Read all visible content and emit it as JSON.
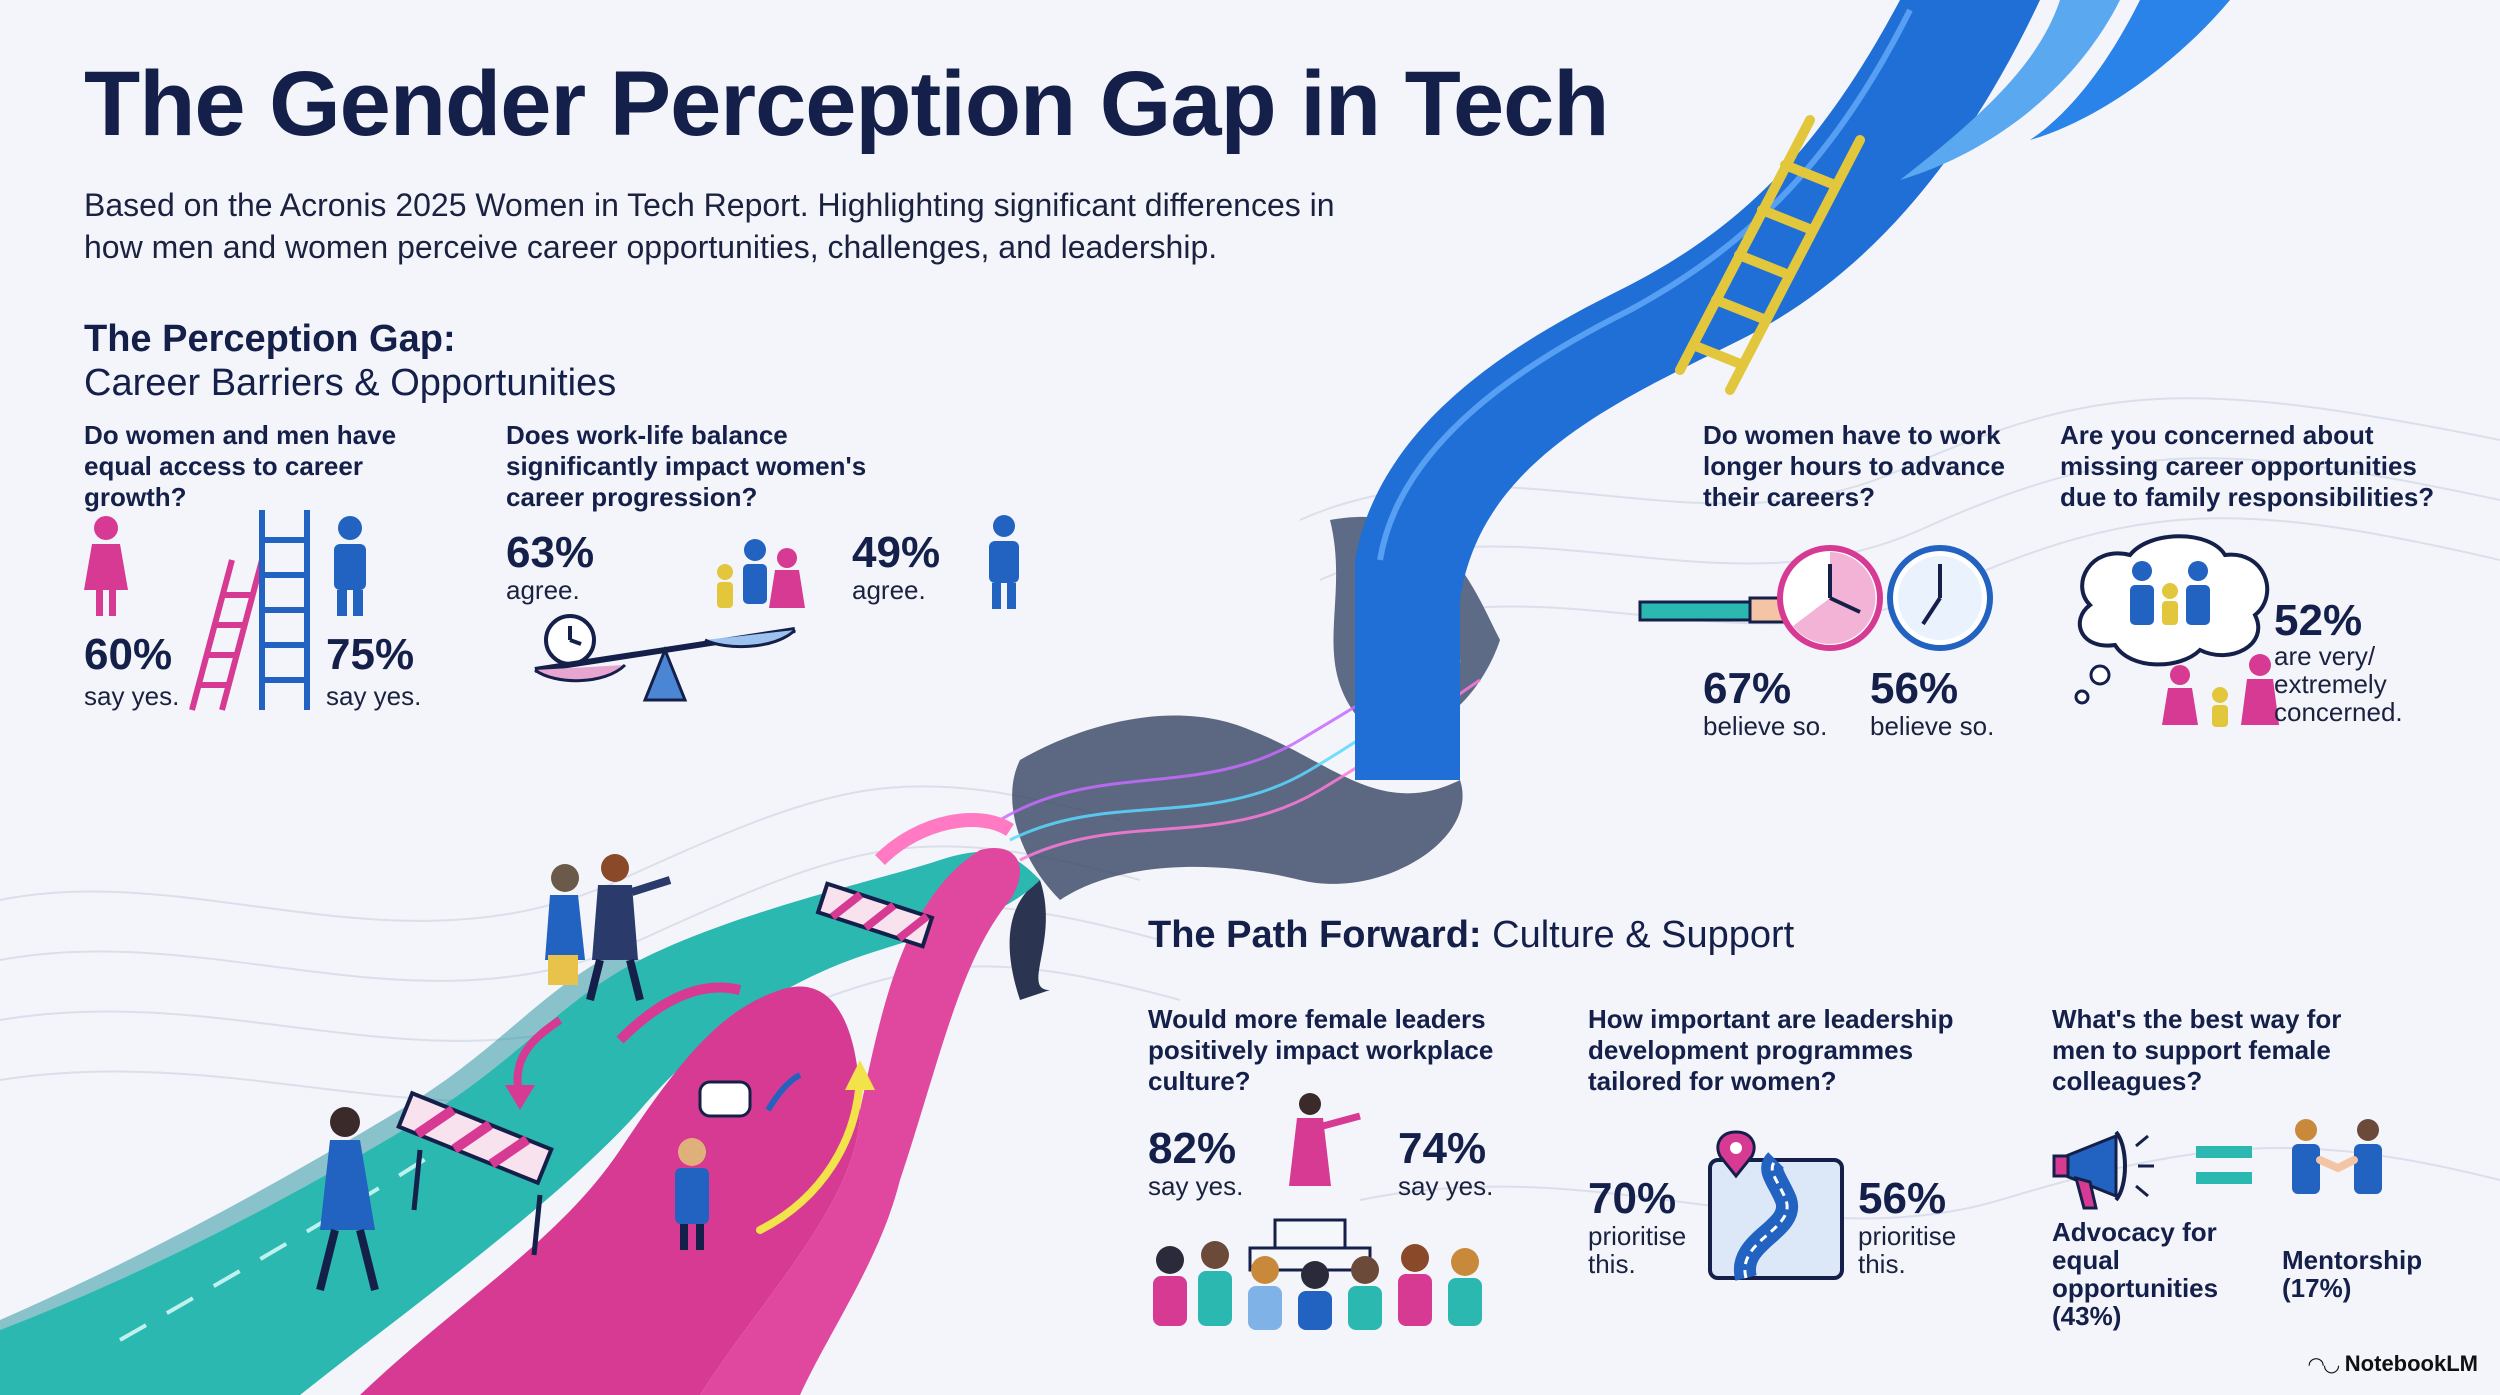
{
  "header": {
    "title": "The Gender Perception Gap in Tech",
    "subtitle": "Based on the Acronis 2025 Women in Tech Report. Highlighting significant differences in how men and women perceive career opportunities, challenges, and leadership."
  },
  "perception": {
    "heading": "The Perception Gap:",
    "subheading": "Career Barriers & Opportunities",
    "stats": [
      {
        "question": "Do women and men have equal access to career growth?",
        "women_value": "60%",
        "women_label": "say yes.",
        "men_value": "75%",
        "men_label": "say yes."
      },
      {
        "question": "Does work-life balance significantly impact women's career progression?",
        "women_value": "63%",
        "women_label": "agree.",
        "men_value": "49%",
        "men_label": "agree."
      },
      {
        "question": "Do women have to work longer hours to advance their careers?",
        "women_value": "67%",
        "women_label": "believe so.",
        "men_value": "56%",
        "men_label": "believe so."
      },
      {
        "question": "Are you concerned about missing career opportunities due to family responsibilities?",
        "value": "52%",
        "label": "are very/ extremely concerned."
      }
    ]
  },
  "path_forward": {
    "heading": "The Path Forward:",
    "subheading": "Culture & Support",
    "stats": [
      {
        "question": "Would more female leaders positively impact workplace culture?",
        "women_value": "82%",
        "women_label": "say yes.",
        "men_value": "74%",
        "men_label": "say yes."
      },
      {
        "question": "How important are leadership development programmes tailored for women?",
        "women_value": "70%",
        "women_label": "prioritise this.",
        "men_value": "56%",
        "men_label": "prioritise this."
      },
      {
        "question": "What's the best way for men to support female colleagues?",
        "option_a": "Advocacy for equal opportunities (43%)",
        "option_b": "Mentorship (17%)"
      }
    ]
  },
  "footer": {
    "brand": "NotebookLM"
  },
  "colors": {
    "women": "#d63a93",
    "men": "#2262c0",
    "teal": "#2bb8b0",
    "navy": "#15204a"
  }
}
